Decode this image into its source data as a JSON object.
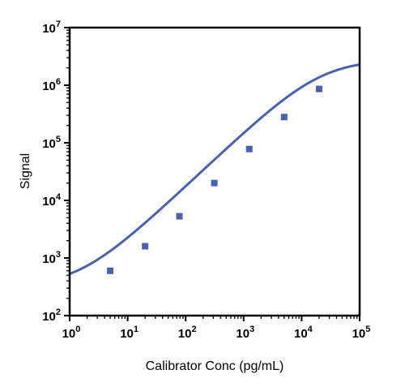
{
  "chart_data": {
    "type": "scatter",
    "title": "",
    "xlabel": "Calibrator Conc (pg/mL)",
    "ylabel": "Signal",
    "x_scale": "log",
    "y_scale": "log",
    "xlim": [
      1,
      100000
    ],
    "ylim": [
      100,
      10000000
    ],
    "x_ticks": [
      "10^0",
      "10^1",
      "10^2",
      "10^3",
      "10^4",
      "10^5"
    ],
    "y_ticks": [
      "10^2",
      "10^3",
      "10^4",
      "10^5",
      "10^6",
      "10^7"
    ],
    "grid": false,
    "legend": "none",
    "series": [
      {
        "points": [
          {
            "x": 5,
            "y": 600
          },
          {
            "x": 20,
            "y": 1600
          },
          {
            "x": 78,
            "y": 5300
          },
          {
            "x": 312,
            "y": 20000
          },
          {
            "x": 1250,
            "y": 78000
          },
          {
            "x": 5000,
            "y": 280000
          },
          {
            "x": 20000,
            "y": 860000
          }
        ],
        "fit_curve": {
          "model": "4PL",
          "bottom": 310,
          "top": 2800000,
          "ec50": 21000,
          "hill": 0.95
        },
        "color": "#4a61ad"
      }
    ]
  }
}
